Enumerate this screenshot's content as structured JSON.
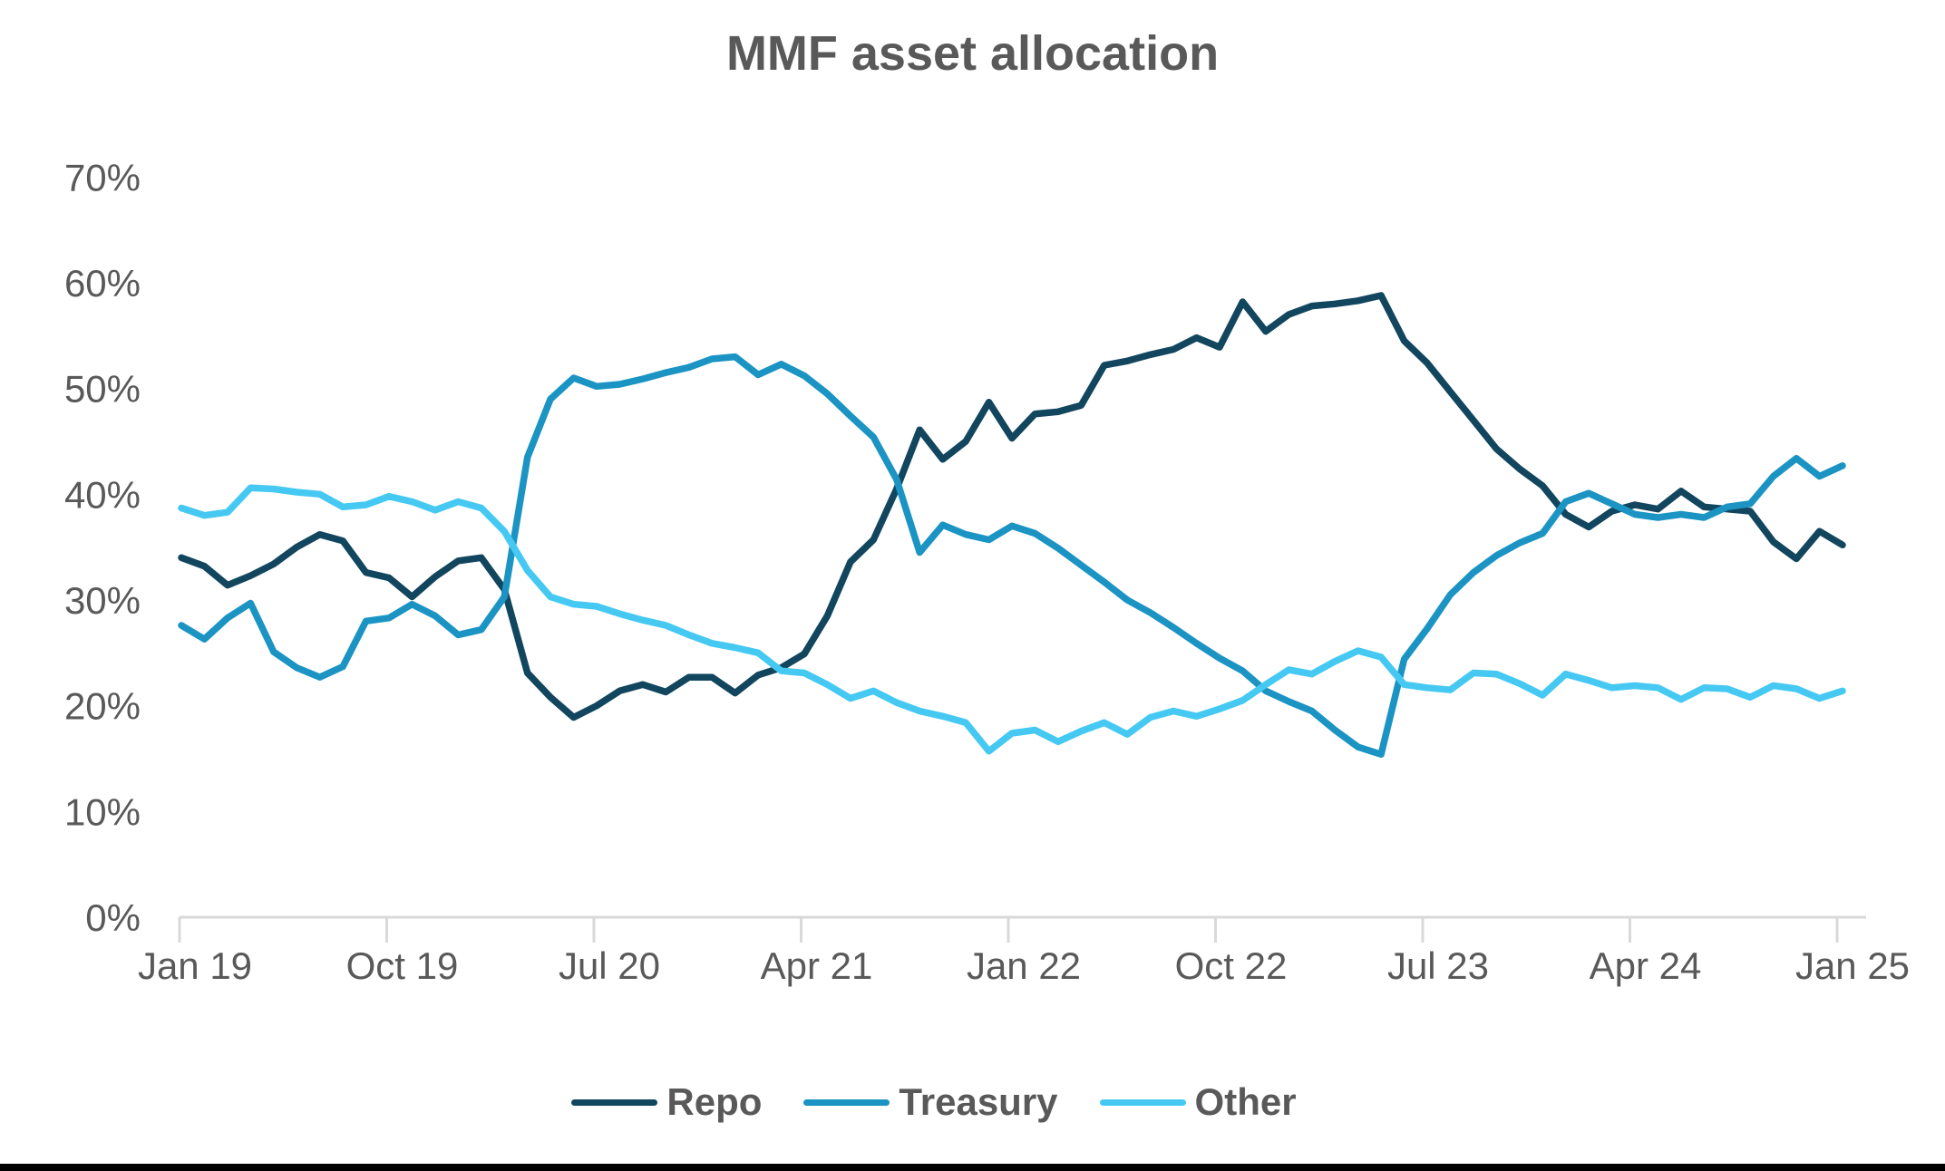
{
  "title": "MMF asset allocation",
  "colors": {
    "repo": "#12465f",
    "treasury": "#1b94c4",
    "other": "#45c9f2",
    "text": "#595959",
    "axis": "#d9d9d9",
    "footer_bar": "#000000",
    "background": "#ffffff"
  },
  "legend": {
    "items": [
      {
        "label": "Repo"
      },
      {
        "label": "Treasury"
      },
      {
        "label": "Other"
      }
    ]
  },
  "chart_data": {
    "type": "line",
    "title": "MMF asset allocation",
    "xlabel": "",
    "ylabel": "",
    "ylim": [
      0,
      70
    ],
    "y_tick_labels": [
      "0%",
      "10%",
      "20%",
      "30%",
      "40%",
      "50%",
      "60%",
      "70%"
    ],
    "x_tick_labels": [
      "Jan 19",
      "Oct 19",
      "Jul 20",
      "Apr 21",
      "Jan 22",
      "Oct 22",
      "Jul 23",
      "Apr 24",
      "Jan 25"
    ],
    "grid": false,
    "legend_position": "bottom",
    "x_frequency": "monthly",
    "x": [
      "Jan 19",
      "Feb 19",
      "Mar 19",
      "Apr 19",
      "May 19",
      "Jun 19",
      "Jul 19",
      "Aug 19",
      "Sep 19",
      "Oct 19",
      "Nov 19",
      "Dec 19",
      "Jan 20",
      "Feb 20",
      "Mar 20",
      "Apr 20",
      "May 20",
      "Jun 20",
      "Jul 20",
      "Aug 20",
      "Sep 20",
      "Oct 20",
      "Nov 20",
      "Dec 20",
      "Jan 21",
      "Feb 21",
      "Mar 21",
      "Apr 21",
      "May 21",
      "Jun 21",
      "Jul 21",
      "Aug 21",
      "Sep 21",
      "Oct 21",
      "Nov 21",
      "Dec 21",
      "Jan 22",
      "Feb 22",
      "Mar 22",
      "Apr 22",
      "May 22",
      "Jun 22",
      "Jul 22",
      "Aug 22",
      "Sep 22",
      "Oct 22",
      "Nov 22",
      "Dec 22",
      "Jan 23",
      "Feb 23",
      "Mar 23",
      "Apr 23",
      "May 23",
      "Jun 23",
      "Jul 23",
      "Aug 23",
      "Sep 23",
      "Oct 23",
      "Nov 23",
      "Dec 23",
      "Jan 24",
      "Feb 24",
      "Mar 24",
      "Apr 24",
      "May 24",
      "Jun 24",
      "Jul 24",
      "Aug 24",
      "Sep 24",
      "Oct 24",
      "Nov 24",
      "Dec 24",
      "Jan 25"
    ],
    "series": [
      {
        "name": "Repo",
        "color": "#12465f",
        "values": [
          34.0,
          33.2,
          31.4,
          32.3,
          33.4,
          35.0,
          36.2,
          35.6,
          32.6,
          32.1,
          30.3,
          32.2,
          33.7,
          34.0,
          31.0,
          23.1,
          20.8,
          18.9,
          20.0,
          21.4,
          22.0,
          21.3,
          22.7,
          22.7,
          21.2,
          22.9,
          23.6,
          24.9,
          28.5,
          33.6,
          35.7,
          40.5,
          46.1,
          43.3,
          45.0,
          48.7,
          45.3,
          47.6,
          47.8,
          48.4,
          52.2,
          52.6,
          53.2,
          53.7,
          54.8,
          53.9,
          58.2,
          55.4,
          57.0,
          57.8,
          58.0,
          58.3,
          58.8,
          54.5,
          52.4,
          49.7,
          47.0,
          44.3,
          42.4,
          40.8,
          38.1,
          36.9,
          38.4,
          39.0,
          38.6,
          40.3,
          38.8,
          38.6,
          38.4,
          35.5,
          33.9,
          36.5,
          35.2
        ]
      },
      {
        "name": "Treasury",
        "color": "#1b94c4",
        "values": [
          27.6,
          26.3,
          28.3,
          29.7,
          25.1,
          23.6,
          22.7,
          23.7,
          28.0,
          28.3,
          29.6,
          28.5,
          26.7,
          27.2,
          30.3,
          43.5,
          49.0,
          51.0,
          50.2,
          50.4,
          50.9,
          51.5,
          52.0,
          52.8,
          53.0,
          51.3,
          52.3,
          51.2,
          49.5,
          47.4,
          45.4,
          41.4,
          34.5,
          37.1,
          36.2,
          35.7,
          37.0,
          36.3,
          34.9,
          33.3,
          31.7,
          30.0,
          28.8,
          27.4,
          25.9,
          24.5,
          23.3,
          21.4,
          20.4,
          19.5,
          17.7,
          16.1,
          15.4,
          24.4,
          27.3,
          30.5,
          32.6,
          34.2,
          35.4,
          36.3,
          39.3,
          40.1,
          39.1,
          38.1,
          37.8,
          38.1,
          37.8,
          38.8,
          39.1,
          41.7,
          43.4,
          41.7,
          42.7
        ]
      },
      {
        "name": "Other",
        "color": "#45c9f2",
        "values": [
          38.7,
          38.0,
          38.3,
          40.6,
          40.5,
          40.2,
          40.0,
          38.8,
          39.0,
          39.8,
          39.3,
          38.5,
          39.3,
          38.7,
          36.5,
          32.8,
          30.3,
          29.6,
          29.4,
          28.7,
          28.1,
          27.6,
          26.7,
          25.9,
          25.5,
          25.0,
          23.3,
          23.1,
          22.0,
          20.7,
          21.4,
          20.3,
          19.5,
          19.0,
          18.4,
          15.7,
          17.4,
          17.7,
          16.6,
          17.6,
          18.4,
          17.3,
          18.9,
          19.5,
          19.0,
          19.7,
          20.5,
          22.0,
          23.4,
          23.0,
          24.2,
          25.2,
          24.6,
          22.0,
          21.7,
          21.5,
          23.1,
          23.0,
          22.1,
          21.0,
          23.0,
          22.4,
          21.7,
          21.9,
          21.7,
          20.6,
          21.7,
          21.6,
          20.8,
          21.9,
          21.6,
          20.7,
          21.4
        ]
      }
    ]
  }
}
